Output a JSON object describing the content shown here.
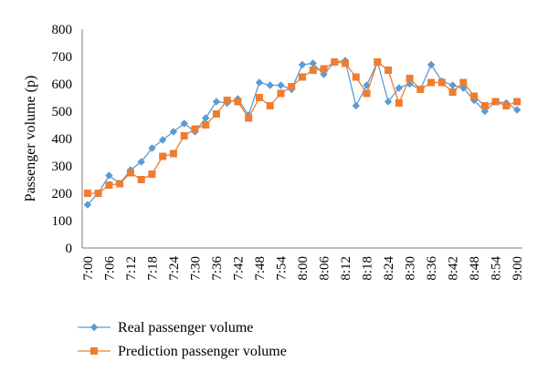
{
  "chart_data": {
    "type": "line",
    "title": "",
    "xlabel": "",
    "ylabel": "Passenger volume (p)",
    "ylim": [
      0,
      800
    ],
    "yticks": [
      "0",
      "100",
      "200",
      "300",
      "400",
      "500",
      "600",
      "700",
      "800"
    ],
    "grid": false,
    "legend_position": "bottom-left",
    "x": [
      "7:00",
      "7:03",
      "7:06",
      "7:09",
      "7:12",
      "7:15",
      "7:18",
      "7:21",
      "7:24",
      "7:27",
      "7:30",
      "7:33",
      "7:36",
      "7:39",
      "7:42",
      "7:45",
      "7:48",
      "7:51",
      "7:54",
      "7:57",
      "8:00",
      "8:03",
      "8:06",
      "8:09",
      "8:12",
      "8:15",
      "8:18",
      "8:21",
      "8:24",
      "8:27",
      "8:30",
      "8:33",
      "8:36",
      "8:39",
      "8:42",
      "8:45",
      "8:48",
      "8:51",
      "8:54",
      "8:57",
      "9:00"
    ],
    "xtick_labels": [
      "7:00",
      "7:06",
      "7:12",
      "7:18",
      "7:24",
      "7:30",
      "7:36",
      "7:42",
      "7:48",
      "7:54",
      "8:00",
      "8:06",
      "8:12",
      "8:18",
      "8:24",
      "8:30",
      "8:36",
      "8:42",
      "8:48",
      "8:54",
      "9:00"
    ],
    "series": [
      {
        "name": "Real passenger volume",
        "color": "#5b9bd5",
        "marker": "diamond",
        "values": [
          158,
          200,
          265,
          235,
          285,
          315,
          365,
          395,
          425,
          455,
          425,
          475,
          535,
          530,
          545,
          485,
          605,
          595,
          595,
          580,
          670,
          675,
          635,
          680,
          685,
          520,
          595,
          680,
          535,
          585,
          600,
          580,
          670,
          610,
          595,
          585,
          540,
          500,
          535,
          530,
          505
        ]
      },
      {
        "name": "Prediction passenger volume",
        "color": "#ed7d31",
        "marker": "square",
        "values": [
          200,
          200,
          230,
          235,
          275,
          250,
          270,
          335,
          345,
          410,
          435,
          450,
          490,
          540,
          535,
          475,
          550,
          520,
          565,
          590,
          625,
          650,
          655,
          680,
          675,
          625,
          565,
          680,
          650,
          530,
          620,
          580,
          605,
          605,
          570,
          605,
          555,
          520,
          535,
          520,
          535
        ]
      }
    ]
  }
}
